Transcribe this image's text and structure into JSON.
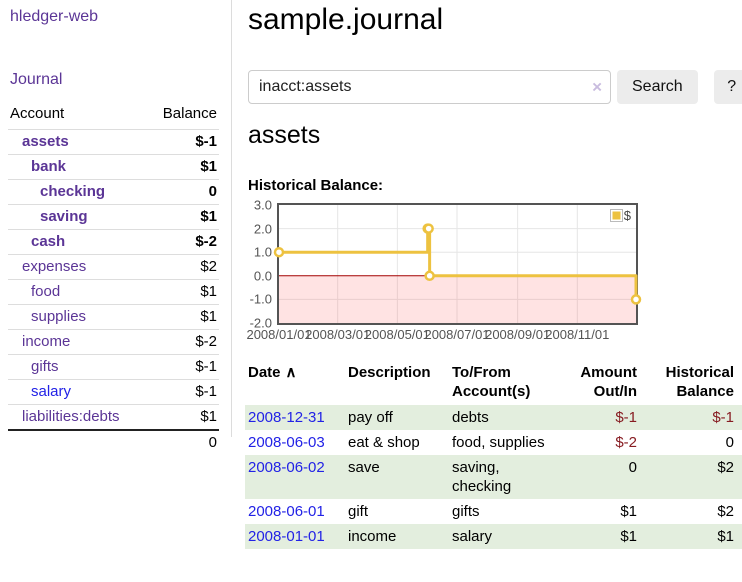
{
  "colors": {
    "link_purple": "#5b3596",
    "link_blue": "#2222e6",
    "negative_strong": "#871c22",
    "negative_muted": "#bf7476",
    "row_green": "#e3eede",
    "series_gold": "#edc240"
  },
  "sidebar": {
    "brand": "hledger-web",
    "journal_link": "Journal",
    "accounts": {
      "headers": {
        "account": "Account",
        "balance": "Balance"
      },
      "rows": [
        {
          "name": "assets",
          "depth": 0,
          "bold": true,
          "balance": "$-1"
        },
        {
          "name": "bank",
          "depth": 1,
          "bold": true,
          "balance": "$1"
        },
        {
          "name": "checking",
          "depth": 2,
          "bold": true,
          "balance": "0"
        },
        {
          "name": "saving",
          "depth": 2,
          "bold": true,
          "balance": "$1"
        },
        {
          "name": "cash",
          "depth": 1,
          "bold": true,
          "balance": "$-2"
        },
        {
          "name": "expenses",
          "depth": 0,
          "bold": false,
          "balance": "$2"
        },
        {
          "name": "food",
          "depth": 1,
          "bold": false,
          "balance": "$1"
        },
        {
          "name": "supplies",
          "depth": 1,
          "bold": false,
          "balance": "$1"
        },
        {
          "name": "income",
          "depth": 0,
          "bold": false,
          "balance": "$-2"
        },
        {
          "name": "gifts",
          "depth": 1,
          "bold": false,
          "balance": "$-1"
        },
        {
          "name": "salary",
          "depth": 1,
          "bold": false,
          "balance": "$-1",
          "link_color": "blue"
        },
        {
          "name": "liabilities:debts",
          "depth": 0,
          "bold": false,
          "balance": "$1"
        }
      ],
      "total": "0"
    }
  },
  "main": {
    "title": "sample.journal",
    "search": {
      "value": "inacct:assets",
      "clear_icon": "×",
      "search_label": "Search",
      "help_label": "?"
    },
    "account_heading": "assets",
    "chart_label": "Historical Balance:"
  },
  "chart_data": {
    "type": "line",
    "step": true,
    "title": "Historical Balance:",
    "x_range": [
      "2008-01-01",
      "2008-12-31"
    ],
    "ylim": [
      -2,
      3
    ],
    "y_ticks": [
      {
        "v": 3,
        "label": "3.0"
      },
      {
        "v": 2,
        "label": "2.0"
      },
      {
        "v": 1,
        "label": "1.0"
      },
      {
        "v": 0,
        "label": "0.0"
      },
      {
        "v": -1,
        "label": "-1.0"
      },
      {
        "v": -2,
        "label": "-2.0"
      }
    ],
    "x_ticks": [
      {
        "date": "2008-01-01",
        "label": "2008/01/01"
      },
      {
        "date": "2008-03-01",
        "label": "2008/03/01"
      },
      {
        "date": "2008-05-01",
        "label": "2008/05/01"
      },
      {
        "date": "2008-07-01",
        "label": "2008/07/01"
      },
      {
        "date": "2008-09-01",
        "label": "2008/09/01"
      },
      {
        "date": "2008-11-01",
        "label": "2008/11/01"
      }
    ],
    "series": [
      {
        "name": "$",
        "color": "#edc240",
        "points": [
          [
            "2008-01-01",
            1
          ],
          [
            "2008-06-01",
            2
          ],
          [
            "2008-06-02",
            2
          ],
          [
            "2008-06-03",
            0
          ],
          [
            "2008-12-31",
            -1
          ]
        ]
      }
    ],
    "legend_position": "top-right",
    "grid": true,
    "grid_color": "#e6e6e6",
    "border_color": "#545454",
    "zero_line_color": "#a40000",
    "negative_region_color": "rgba(255,70,70,0.15)"
  },
  "register": {
    "headers": {
      "date": "Date",
      "sort_indicator": "∧",
      "description": "Description",
      "account_line1": "To/From",
      "account_line2": "Account(s)",
      "amount_line1": "Amount",
      "amount_line2": "Out/In",
      "balance_line1": "Historical",
      "balance_line2": "Balance"
    },
    "rows": [
      {
        "date": "2008-12-31",
        "description": "pay off",
        "accounts": "debts",
        "amount": "$-1",
        "balance": "$-1"
      },
      {
        "date": "2008-06-03",
        "description": "eat & shop",
        "accounts": "food, supplies",
        "amount": "$-2",
        "balance": "0"
      },
      {
        "date": "2008-06-02",
        "description": "save",
        "accounts": "saving, checking",
        "amount": "0",
        "balance": "$2"
      },
      {
        "date": "2008-06-01",
        "description": "gift",
        "accounts": "gifts",
        "amount": "$1",
        "balance": "$2"
      },
      {
        "date": "2008-01-01",
        "description": "income",
        "accounts": "salary",
        "amount": "$1",
        "balance": "$1"
      }
    ]
  }
}
